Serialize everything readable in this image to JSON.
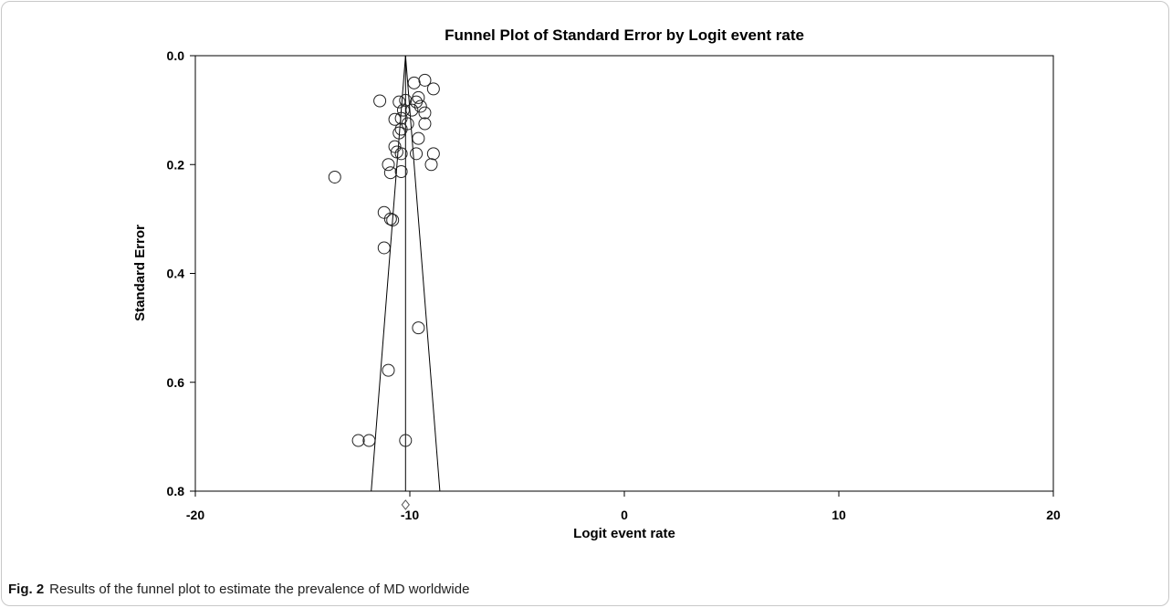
{
  "chart_data": {
    "type": "scatter",
    "title": "Funnel Plot of Standard Error by Logit event rate",
    "xlabel": "Logit event rate",
    "ylabel": "Standard Error",
    "xlim": [
      -20,
      20
    ],
    "ylim": [
      0.0,
      0.8
    ],
    "y_inverted": true,
    "xticks": [
      "-20",
      "-10",
      "0",
      "10",
      "20"
    ],
    "yticks": [
      "0.0",
      "0.2",
      "0.4",
      "0.6",
      "0.8"
    ],
    "grid": false,
    "pooled_estimate": -10.2,
    "funnel": {
      "apex": [
        -10.2,
        0.0
      ],
      "bottom_left": [
        -11.8,
        0.8
      ],
      "bottom_right": [
        -8.6,
        0.8
      ]
    },
    "summary_diamond": {
      "x": -10.2,
      "y": 0.825
    },
    "points": [
      {
        "x": -11.4,
        "y": 0.083
      },
      {
        "x": -10.5,
        "y": 0.085
      },
      {
        "x": -10.2,
        "y": 0.082
      },
      {
        "x": -9.8,
        "y": 0.05
      },
      {
        "x": -9.3,
        "y": 0.045
      },
      {
        "x": -8.9,
        "y": 0.061
      },
      {
        "x": -9.6,
        "y": 0.077
      },
      {
        "x": -9.7,
        "y": 0.085
      },
      {
        "x": -9.5,
        "y": 0.093
      },
      {
        "x": -9.3,
        "y": 0.105
      },
      {
        "x": -9.9,
        "y": 0.1
      },
      {
        "x": -10.3,
        "y": 0.1
      },
      {
        "x": -10.4,
        "y": 0.115
      },
      {
        "x": -10.7,
        "y": 0.117
      },
      {
        "x": -10.1,
        "y": 0.125
      },
      {
        "x": -9.3,
        "y": 0.125
      },
      {
        "x": -10.4,
        "y": 0.135
      },
      {
        "x": -10.5,
        "y": 0.142
      },
      {
        "x": -9.6,
        "y": 0.152
      },
      {
        "x": -10.7,
        "y": 0.167
      },
      {
        "x": -10.6,
        "y": 0.177
      },
      {
        "x": -10.4,
        "y": 0.18
      },
      {
        "x": -9.7,
        "y": 0.18
      },
      {
        "x": -8.9,
        "y": 0.18
      },
      {
        "x": -11.0,
        "y": 0.2
      },
      {
        "x": -9.0,
        "y": 0.2
      },
      {
        "x": -10.9,
        "y": 0.215
      },
      {
        "x": -10.4,
        "y": 0.213
      },
      {
        "x": -13.5,
        "y": 0.223
      },
      {
        "x": -11.2,
        "y": 0.288
      },
      {
        "x": -10.9,
        "y": 0.3
      },
      {
        "x": -10.8,
        "y": 0.302
      },
      {
        "x": -11.2,
        "y": 0.353
      },
      {
        "x": -9.6,
        "y": 0.5
      },
      {
        "x": -11.0,
        "y": 0.578
      },
      {
        "x": -12.4,
        "y": 0.707
      },
      {
        "x": -11.9,
        "y": 0.707
      },
      {
        "x": -10.2,
        "y": 0.707
      }
    ]
  },
  "caption": {
    "figure_label": "Fig. 2",
    "text": "Results of the funnel plot to estimate the prevalence of MD worldwide"
  }
}
